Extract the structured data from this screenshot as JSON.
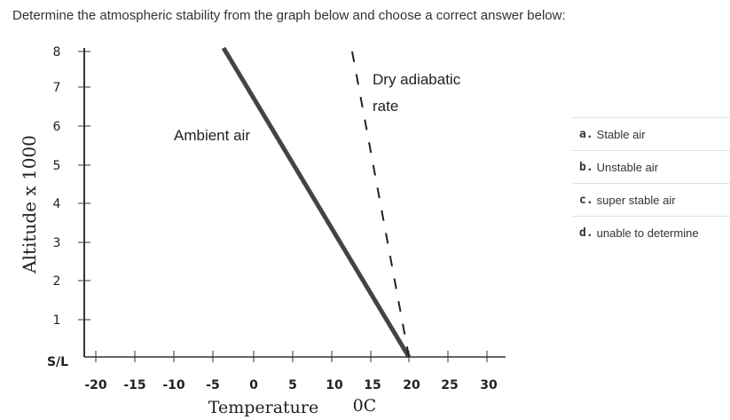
{
  "question": {
    "text": "Determine the atmospheric stability from the graph below and choose a correct answer below:"
  },
  "graph": {
    "y_axis_title": "Altitude  x  1000",
    "y_ticks": [
      "8",
      "7",
      "6",
      "5",
      "4",
      "3",
      "2",
      "1",
      "S/L"
    ],
    "x_ticks": [
      "-20",
      "-15",
      "-10",
      "-5",
      "0",
      "5",
      "10",
      "15",
      "20",
      "25",
      "30"
    ],
    "x_axis_title": "Temperature",
    "x_unit": "0C",
    "ambient_label": "Ambient air",
    "dry_label_line1": "Dry adiabatic",
    "dry_label_line2": "rate"
  },
  "options": [
    {
      "letter": "a.",
      "text": "Stable air"
    },
    {
      "letter": "b.",
      "text": "Unstable air"
    },
    {
      "letter": "c.",
      "text": "super stable air"
    },
    {
      "letter": "d.",
      "text": "unable to determine"
    }
  ]
}
